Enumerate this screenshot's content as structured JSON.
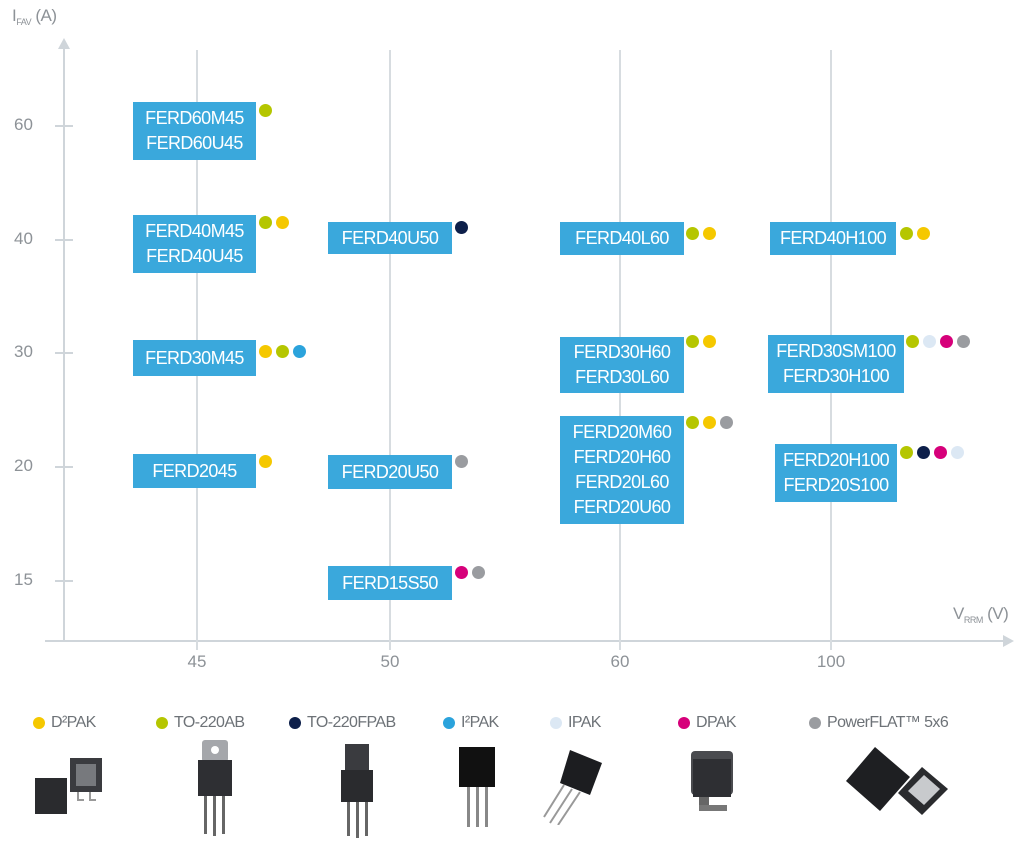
{
  "chart_data": {
    "type": "scatter",
    "xlabel": "V",
    "xlabel_sub": "RRM",
    "xlabel_unit": "(V)",
    "ylabel": "I",
    "ylabel_sub": "FAV",
    "ylabel_unit": "(A)",
    "x_categories": [
      "45",
      "50",
      "60",
      "100"
    ],
    "y_ticks": [
      "60",
      "40",
      "30",
      "20",
      "15"
    ],
    "grid": "vertical lines at each voltage",
    "box_color": "#3aa8dc",
    "packages": [
      {
        "key": "d2pak",
        "label": "D²PAK",
        "color": "#f5c800"
      },
      {
        "key": "to220ab",
        "label": "TO-220AB",
        "color": "#b5c600"
      },
      {
        "key": "to220fpab",
        "label": "TO-220FPAB",
        "color": "#0d1f4a"
      },
      {
        "key": "i2pak",
        "label": "I²PAK",
        "color": "#2ba3dc"
      },
      {
        "key": "ipak",
        "label": "IPAK",
        "color": "#dce8f4"
      },
      {
        "key": "dpak",
        "label": "DPAK",
        "color": "#d6007a"
      },
      {
        "key": "powerflat",
        "label": "PowerFLAT™ 5x6",
        "color": "#9a9ca0"
      }
    ],
    "products": [
      {
        "voltage": "45",
        "current": "60",
        "names": [
          "FERD60M45",
          "FERD60U45"
        ],
        "packages": [
          "to220ab"
        ]
      },
      {
        "voltage": "45",
        "current": "40",
        "names": [
          "FERD40M45",
          "FERD40U45"
        ],
        "packages": [
          "to220ab",
          "d2pak"
        ]
      },
      {
        "voltage": "45",
        "current": "30",
        "names": [
          "FERD30M45"
        ],
        "packages": [
          "d2pak",
          "to220ab",
          "i2pak"
        ]
      },
      {
        "voltage": "45",
        "current": "20",
        "names": [
          "FERD2045"
        ],
        "packages": [
          "d2pak"
        ]
      },
      {
        "voltage": "50",
        "current": "40",
        "names": [
          "FERD40U50"
        ],
        "packages": [
          "to220fpab"
        ]
      },
      {
        "voltage": "50",
        "current": "20",
        "names": [
          "FERD20U50"
        ],
        "packages": [
          "powerflat"
        ]
      },
      {
        "voltage": "50",
        "current": "15",
        "names": [
          "FERD15S50"
        ],
        "packages": [
          "dpak",
          "powerflat"
        ]
      },
      {
        "voltage": "60",
        "current": "40",
        "names": [
          "FERD40L60"
        ],
        "packages": [
          "to220ab",
          "d2pak"
        ]
      },
      {
        "voltage": "60",
        "current": "30",
        "names": [
          "FERD30H60",
          "FERD30L60"
        ],
        "packages": [
          "to220ab",
          "d2pak"
        ]
      },
      {
        "voltage": "60",
        "current": "20",
        "names": [
          "FERD20M60",
          "FERD20H60",
          "FERD20L60",
          "FERD20U60"
        ],
        "packages": [
          "to220ab",
          "d2pak",
          "powerflat"
        ]
      },
      {
        "voltage": "100",
        "current": "40",
        "names": [
          "FERD40H100"
        ],
        "packages": [
          "to220ab",
          "d2pak"
        ]
      },
      {
        "voltage": "100",
        "current": "30",
        "names": [
          "FERD30SM100",
          "FERD30H100"
        ],
        "packages": [
          "to220ab",
          "ipak",
          "dpak",
          "powerflat"
        ]
      },
      {
        "voltage": "100",
        "current": "20",
        "names": [
          "FERD20H100",
          "FERD20S100"
        ],
        "packages": [
          "to220ab",
          "to220fpab",
          "dpak",
          "ipak"
        ]
      }
    ]
  }
}
